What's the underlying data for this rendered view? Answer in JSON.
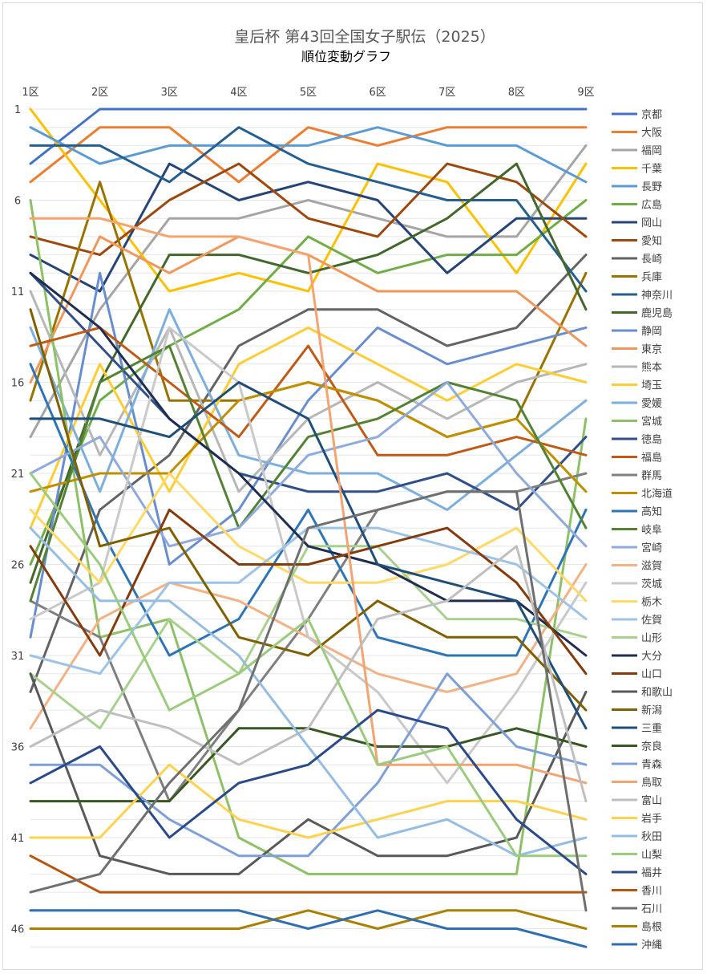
{
  "chart_data": {
    "type": "line",
    "title": "皇后杯 第43回全国女子駅伝（2025）",
    "subtitle": "順位変動グラフ",
    "x": [
      "1区",
      "2区",
      "3区",
      "4区",
      "5区",
      "6区",
      "7区",
      "8区",
      "9区"
    ],
    "y_ticks": [
      "1",
      "6",
      "11",
      "16",
      "21",
      "26",
      "31",
      "36",
      "41",
      "46"
    ],
    "ylim": [
      1,
      47
    ],
    "y_reversed": true,
    "legend_position": "right",
    "grid": true,
    "series": [
      {
        "name": "京都",
        "color": "#4472C4",
        "values": [
          4,
          1,
          1,
          1,
          1,
          1,
          1,
          1,
          1
        ]
      },
      {
        "name": "大阪",
        "color": "#ED7D31",
        "values": [
          5,
          2,
          2,
          5,
          2,
          3,
          2,
          2,
          2
        ]
      },
      {
        "name": "福岡",
        "color": "#A5A5A5",
        "values": [
          19,
          12,
          7,
          7,
          6,
          7,
          8,
          8,
          3
        ]
      },
      {
        "name": "千葉",
        "color": "#FFC000",
        "values": [
          1,
          6,
          11,
          10,
          11,
          4,
          5,
          10,
          4
        ]
      },
      {
        "name": "長野",
        "color": "#5B9BD5",
        "values": [
          2,
          4,
          3,
          3,
          3,
          2,
          3,
          3,
          5
        ]
      },
      {
        "name": "広島",
        "color": "#70AD47",
        "values": [
          26,
          17,
          14,
          12,
          8,
          10,
          9,
          9,
          6
        ]
      },
      {
        "name": "岡山",
        "color": "#264478",
        "values": [
          9,
          11,
          4,
          6,
          5,
          6,
          10,
          7,
          7
        ]
      },
      {
        "name": "愛知",
        "color": "#9E480E",
        "values": [
          8,
          9,
          6,
          4,
          7,
          8,
          4,
          5,
          8
        ]
      },
      {
        "name": "長崎",
        "color": "#636363",
        "values": [
          33,
          23,
          20,
          14,
          12,
          12,
          14,
          13,
          9
        ]
      },
      {
        "name": "兵庫",
        "color": "#997300",
        "values": [
          17,
          5,
          17,
          17,
          16,
          17,
          19,
          18,
          10
        ]
      },
      {
        "name": "神奈川",
        "color": "#255E91",
        "values": [
          3,
          3,
          5,
          2,
          4,
          5,
          6,
          6,
          11
        ]
      },
      {
        "name": "鹿児島",
        "color": "#43682B",
        "values": [
          27,
          16,
          9,
          9,
          10,
          9,
          7,
          4,
          12
        ]
      },
      {
        "name": "静岡",
        "color": "#698ED0",
        "values": [
          30,
          10,
          26,
          23,
          17,
          13,
          15,
          14,
          13
        ]
      },
      {
        "name": "東京",
        "color": "#F1975A",
        "values": [
          16,
          8,
          10,
          8,
          9,
          11,
          11,
          11,
          14
        ]
      },
      {
        "name": "熊本",
        "color": "#B7B7B7",
        "values": [
          11,
          20,
          13,
          22,
          18,
          16,
          18,
          16,
          15
        ]
      },
      {
        "name": "埼玉",
        "color": "#FFCD33",
        "values": [
          24,
          15,
          22,
          15,
          13,
          15,
          17,
          15,
          16
        ]
      },
      {
        "name": "愛媛",
        "color": "#7CAFDD",
        "values": [
          13,
          22,
          12,
          20,
          21,
          21,
          23,
          20,
          17
        ]
      },
      {
        "name": "宮城",
        "color": "#8CC168",
        "values": [
          6,
          30,
          29,
          41,
          43,
          43,
          43,
          43,
          18
        ]
      },
      {
        "name": "徳島",
        "color": "#314F89",
        "values": [
          10,
          14,
          18,
          21,
          22,
          22,
          21,
          23,
          19
        ]
      },
      {
        "name": "福島",
        "color": "#C05A15",
        "values": [
          14,
          13,
          16,
          19,
          14,
          20,
          20,
          19,
          20
        ]
      },
      {
        "name": "群馬",
        "color": "#7F7F7F",
        "values": [
          28,
          30,
          39,
          34,
          29,
          23,
          22,
          22,
          21
        ]
      },
      {
        "name": "北海道",
        "color": "#BF8F00",
        "values": [
          22,
          21,
          21,
          17,
          16,
          17,
          19,
          18,
          22
        ]
      },
      {
        "name": "高知",
        "color": "#2E75B6",
        "values": [
          15,
          24,
          31,
          29,
          23,
          30,
          31,
          31,
          23
        ]
      },
      {
        "name": "岐阜",
        "color": "#548235",
        "values": [
          28,
          16,
          14,
          24,
          19,
          18,
          16,
          17,
          24
        ]
      },
      {
        "name": "宮崎",
        "color": "#8FAADC",
        "values": [
          21,
          19,
          25,
          24,
          20,
          19,
          16,
          21,
          25
        ]
      },
      {
        "name": "滋賀",
        "color": "#F4B183",
        "values": [
          35,
          29,
          27,
          28,
          30,
          32,
          33,
          32,
          26
        ]
      },
      {
        "name": "茨城",
        "color": "#C9C9C9",
        "values": [
          29,
          27,
          13,
          16,
          30,
          33,
          38,
          33,
          27
        ]
      },
      {
        "name": "栃木",
        "color": "#FFD966",
        "values": [
          23,
          27,
          21,
          25,
          27,
          27,
          26,
          24,
          28
        ]
      },
      {
        "name": "佐賀",
        "color": "#9DC3E6",
        "values": [
          31,
          32,
          27,
          27,
          24,
          24,
          25,
          26,
          29
        ]
      },
      {
        "name": "山形",
        "color": "#A9D18E",
        "values": [
          32,
          35,
          29,
          32,
          25,
          25,
          29,
          29,
          30
        ]
      },
      {
        "name": "大分",
        "color": "#1F2D50",
        "values": [
          10,
          13,
          18,
          21,
          25,
          26,
          28,
          28,
          31
        ]
      },
      {
        "name": "山口",
        "color": "#843C0C",
        "values": [
          25,
          31,
          23,
          26,
          26,
          25,
          24,
          27,
          32
        ]
      },
      {
        "name": "和歌山",
        "color": "#595959",
        "values": [
          32,
          42,
          43,
          43,
          40,
          42,
          42,
          41,
          33
        ]
      },
      {
        "name": "新潟",
        "color": "#7F6000",
        "values": [
          12,
          25,
          24,
          30,
          31,
          28,
          30,
          30,
          34
        ]
      },
      {
        "name": "三重",
        "color": "#1F4E79",
        "values": [
          18,
          18,
          19,
          16,
          18,
          26,
          27,
          28,
          35
        ]
      },
      {
        "name": "奈良",
        "color": "#385723",
        "values": [
          39,
          39,
          39,
          35,
          35,
          36,
          36,
          35,
          36
        ]
      },
      {
        "name": "青森",
        "color": "#7F9FD8",
        "values": [
          37,
          37,
          40,
          42,
          42,
          38,
          32,
          36,
          37
        ]
      },
      {
        "name": "鳥取",
        "color": "#F4A470",
        "values": [
          7,
          7,
          8,
          8,
          9,
          37,
          37,
          37,
          38
        ]
      },
      {
        "name": "富山",
        "color": "#BFBFBF",
        "values": [
          36,
          34,
          35,
          37,
          35,
          29,
          28,
          25,
          39
        ]
      },
      {
        "name": "岩手",
        "color": "#FFD24D",
        "values": [
          41,
          41,
          37,
          40,
          41,
          40,
          39,
          39,
          40
        ]
      },
      {
        "name": "秋田",
        "color": "#95BDE3",
        "values": [
          24,
          28,
          28,
          31,
          36,
          41,
          40,
          42,
          41
        ]
      },
      {
        "name": "山梨",
        "color": "#9BCB7C",
        "values": [
          21,
          26,
          34,
          32,
          29,
          37,
          36,
          42,
          42
        ]
      },
      {
        "name": "福井",
        "color": "#2B4A8A",
        "values": [
          38,
          36,
          41,
          38,
          37,
          34,
          35,
          40,
          43
        ]
      },
      {
        "name": "香川",
        "color": "#B8560F",
        "values": [
          42,
          44,
          44,
          44,
          44,
          44,
          44,
          44,
          44
        ]
      },
      {
        "name": "石川",
        "color": "#6F6F6F",
        "values": [
          44,
          43,
          38,
          34,
          24,
          23,
          22,
          22,
          45
        ]
      },
      {
        "name": "島根",
        "color": "#AA8000",
        "values": [
          46,
          46,
          46,
          46,
          45,
          46,
          45,
          45,
          46
        ]
      },
      {
        "name": "沖縄",
        "color": "#2F6EB0",
        "values": [
          45,
          45,
          45,
          45,
          46,
          45,
          46,
          46,
          47
        ]
      }
    ]
  }
}
